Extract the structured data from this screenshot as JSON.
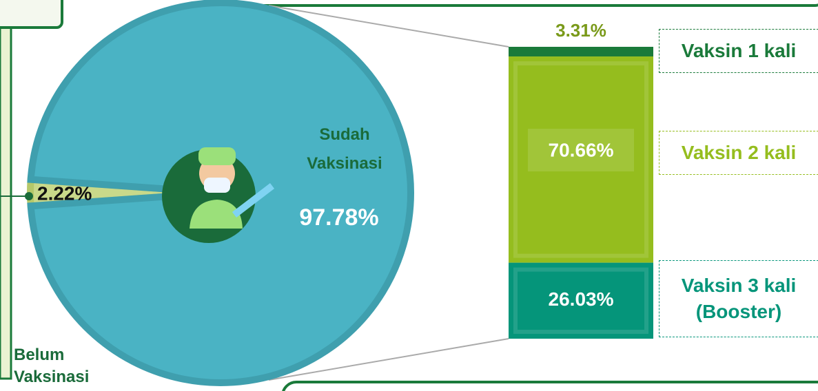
{
  "chart_data": [
    {
      "type": "pie",
      "categories": [
        "Belum Vaksinasi",
        "Sudah Vaksinasi"
      ],
      "values": [
        2.22,
        97.78
      ],
      "value_labels": [
        "2.22%",
        "97.78%"
      ],
      "colors": [
        "#c9d98a",
        "#4ab3c4"
      ]
    },
    {
      "type": "stacked_bar",
      "series": [
        {
          "name": "Vaksin 1 kali",
          "color": "#1a7a3a",
          "values": [
            3.31
          ],
          "value_labels": [
            "3.31%"
          ]
        },
        {
          "name": "Vaksin 2 kali",
          "color": "#95bd1e",
          "values": [
            70.66
          ],
          "value_labels": [
            "70.66%"
          ]
        },
        {
          "name": "Vaksin 3 kali (Booster)",
          "color": "#05957a",
          "values": [
            26.03
          ],
          "value_labels": [
            "26.03%"
          ]
        }
      ]
    }
  ]
}
